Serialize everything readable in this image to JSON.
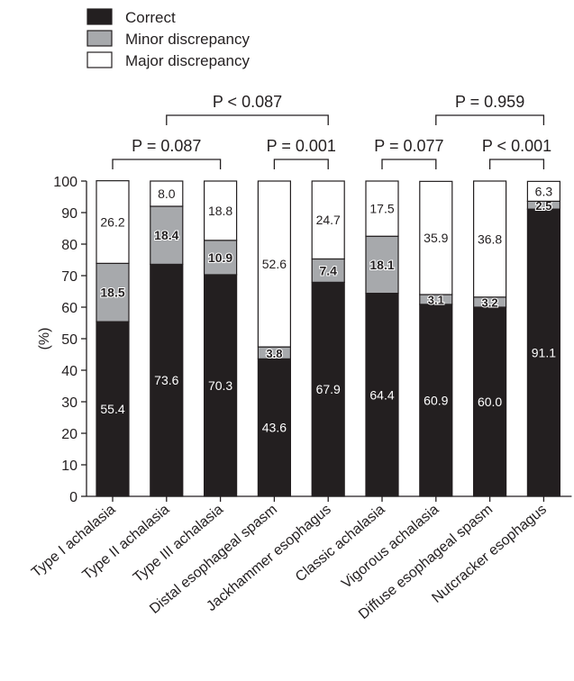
{
  "chart_data": {
    "type": "bar",
    "stacked": true,
    "title": "",
    "xlabel": "",
    "ylabel": "(%)",
    "ylim": [
      0,
      100
    ],
    "yticks": [
      0,
      10,
      20,
      30,
      40,
      50,
      60,
      70,
      80,
      90,
      100
    ],
    "grid": false,
    "legend_position": "top-left",
    "categories": [
      "Type I achalasia",
      "Type II achalasia",
      "Type III achalasia",
      "Distal esophageal spasm",
      "Jackhammer esophagus",
      "Classic achalasia",
      "Vigorous achalasia",
      "Diffuse esophageal spasm",
      "Nutcracker esophagus"
    ],
    "series": [
      {
        "name": "Correct",
        "color": "#231f20",
        "label_color": "#ffffff",
        "values": [
          55.4,
          73.6,
          70.3,
          43.6,
          67.9,
          64.4,
          60.9,
          60.0,
          91.1
        ],
        "labels": [
          "55.4",
          "73.6",
          "70.3",
          "43.6",
          "67.9",
          "64.4",
          "60.9",
          "60.0",
          "91.1"
        ]
      },
      {
        "name": "Minor discrepancy",
        "color": "#a7a9ac",
        "label_color": "#231f20",
        "values": [
          18.5,
          18.4,
          10.9,
          3.8,
          7.4,
          18.1,
          3.1,
          3.2,
          2.5
        ],
        "labels": [
          "18.5",
          "18.4",
          "10.9",
          "3.8",
          "7.4",
          "18.1",
          "3.1",
          "3.2",
          "2.5"
        ]
      },
      {
        "name": "Major discrepancy",
        "color": "#ffffff",
        "label_color": "#231f20",
        "values": [
          26.2,
          8.0,
          18.8,
          52.6,
          24.7,
          17.5,
          35.9,
          36.8,
          6.3
        ],
        "labels": [
          "26.2",
          "8.0",
          "18.8",
          "52.6",
          "24.7",
          "17.5",
          "35.9",
          "36.8",
          "6.3"
        ]
      }
    ],
    "annotations": [
      {
        "text": "P = 0.087",
        "from": 0,
        "to": 2
      },
      {
        "text": "P < 0.087",
        "from": 1,
        "to": 4
      },
      {
        "text": "P = 0.001",
        "from": 3,
        "to": 4
      },
      {
        "text": "P = 0.077",
        "from": 5,
        "to": 6
      },
      {
        "text": "P = 0.959",
        "from": 6,
        "to": 8
      },
      {
        "text": "P < 0.001",
        "from": 7,
        "to": 8
      }
    ]
  }
}
